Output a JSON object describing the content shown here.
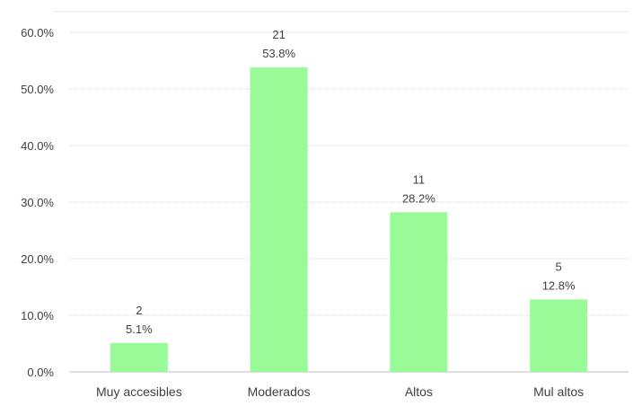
{
  "chart_data": {
    "type": "bar",
    "title": "",
    "xlabel": "",
    "ylabel": "",
    "categories": [
      "Muy accesibles",
      "Moderados",
      "Altos",
      "Mul altos"
    ],
    "values": [
      5.1,
      53.8,
      28.2,
      12.8
    ],
    "counts": [
      2,
      21,
      11,
      5
    ],
    "value_labels": [
      "5.1%",
      "53.8%",
      "28.2%",
      "12.8%"
    ],
    "count_labels": [
      "2",
      "21",
      "11",
      "5"
    ],
    "ylim": [
      0,
      60
    ],
    "yticks": [
      "0.0%",
      "10.0%",
      "20.0%",
      "30.0%",
      "40.0%",
      "50.0%",
      "60.0%"
    ],
    "grid": true,
    "colors": {
      "bar": "#98fb98",
      "grid": "#d9d9d9",
      "axis": "#bfbfbf",
      "text": "#404040"
    }
  }
}
